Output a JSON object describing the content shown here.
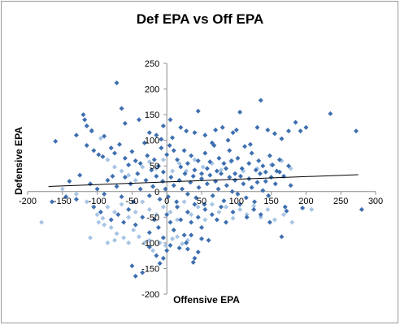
{
  "chart_data": {
    "type": "scatter",
    "title": "Def EPA vs Off EPA",
    "xlabel": "Offensive EPA",
    "ylabel": "Defensive EPA",
    "xlim": [
      -200,
      300
    ],
    "ylim": [
      -200,
      250
    ],
    "x_ticks": [
      -200,
      -150,
      -100,
      -50,
      0,
      50,
      100,
      150,
      200,
      250,
      300
    ],
    "y_ticks": [
      -200,
      -150,
      -100,
      -50,
      0,
      50,
      100,
      150,
      200,
      250
    ],
    "grid": false,
    "legend": "none",
    "trendline": {
      "type": "linear",
      "x": [
        -170,
        275
      ],
      "y": [
        10,
        33
      ],
      "color": "#000000"
    },
    "series": [
      {
        "color": "#3e6fb0",
        "points": [
          [
            -72,
            212
          ],
          [
            -65,
            162
          ],
          [
            -120,
            150
          ],
          [
            -118,
            140
          ],
          [
            -115,
            128
          ],
          [
            -108,
            118
          ],
          [
            -90,
            108
          ],
          [
            -60,
            133
          ],
          [
            -40,
            140
          ],
          [
            -25,
            115
          ],
          [
            -15,
            110
          ],
          [
            -8,
            102
          ],
          [
            5,
            140
          ],
          [
            -5,
            128
          ],
          [
            8,
            105
          ],
          [
            20,
            125
          ],
          [
            28,
            118
          ],
          [
            40,
            115
          ],
          [
            45,
            157
          ],
          [
            55,
            110
          ],
          [
            65,
            95
          ],
          [
            70,
            120
          ],
          [
            80,
            125
          ],
          [
            88,
            100
          ],
          [
            95,
            115
          ],
          [
            100,
            120
          ],
          [
            105,
            155
          ],
          [
            120,
            92
          ],
          [
            130,
            125
          ],
          [
            135,
            178
          ],
          [
            145,
            120
          ],
          [
            155,
            113
          ],
          [
            165,
            103
          ],
          [
            175,
            118
          ],
          [
            185,
            135
          ],
          [
            192,
            118
          ],
          [
            200,
            125
          ],
          [
            235,
            152
          ],
          [
            272,
            118
          ],
          [
            -160,
            98
          ],
          [
            -130,
            110
          ],
          [
            -115,
            90
          ],
          [
            -105,
            80
          ],
          [
            -98,
            72
          ],
          [
            -92,
            68
          ],
          [
            -80,
            85
          ],
          [
            -75,
            75
          ],
          [
            -68,
            92
          ],
          [
            -60,
            65
          ],
          [
            -55,
            52
          ],
          [
            -50,
            78
          ],
          [
            -45,
            60
          ],
          [
            -38,
            55
          ],
          [
            -32,
            95
          ],
          [
            -28,
            70
          ],
          [
            -22,
            42
          ],
          [
            -18,
            62
          ],
          [
            -12,
            50
          ],
          [
            -8,
            85
          ],
          [
            -5,
            38
          ],
          [
            0,
            72
          ],
          [
            4,
            90
          ],
          [
            10,
            80
          ],
          [
            15,
            62
          ],
          [
            20,
            48
          ],
          [
            25,
            80
          ],
          [
            30,
            55
          ],
          [
            35,
            70
          ],
          [
            40,
            42
          ],
          [
            45,
            60
          ],
          [
            50,
            35
          ],
          [
            55,
            75
          ],
          [
            58,
            45
          ],
          [
            62,
            58
          ],
          [
            68,
            90
          ],
          [
            72,
            40
          ],
          [
            75,
            65
          ],
          [
            82,
            55
          ],
          [
            85,
            45
          ],
          [
            90,
            80
          ],
          [
            93,
            60
          ],
          [
            98,
            35
          ],
          [
            102,
            65
          ],
          [
            108,
            45
          ],
          [
            112,
            88
          ],
          [
            118,
            55
          ],
          [
            122,
            75
          ],
          [
            128,
            42
          ],
          [
            132,
            60
          ],
          [
            138,
            50
          ],
          [
            142,
            38
          ],
          [
            148,
            70
          ],
          [
            152,
            52
          ],
          [
            158,
            40
          ],
          [
            162,
            62
          ],
          [
            168,
            30
          ],
          [
            175,
            50
          ],
          [
            -140,
            20
          ],
          [
            -125,
            32
          ],
          [
            -110,
            15
          ],
          [
            -100,
            5
          ],
          [
            -90,
            -5
          ],
          [
            -85,
            22
          ],
          [
            -78,
            30
          ],
          [
            -72,
            10
          ],
          [
            -65,
            -10
          ],
          [
            -60,
            28
          ],
          [
            -52,
            15
          ],
          [
            -48,
            -20
          ],
          [
            -42,
            35
          ],
          [
            -38,
            5
          ],
          [
            -30,
            22
          ],
          [
            -25,
            -8
          ],
          [
            -20,
            10
          ],
          [
            -15,
            30
          ],
          [
            -10,
            -15
          ],
          [
            -6,
            20
          ],
          [
            -2,
            5
          ],
          [
            2,
            -10
          ],
          [
            6,
            28
          ],
          [
            10,
            12
          ],
          [
            14,
            -20
          ],
          [
            18,
            22
          ],
          [
            22,
            5
          ],
          [
            26,
            35
          ],
          [
            30,
            -5
          ],
          [
            34,
            18
          ],
          [
            38,
            30
          ],
          [
            42,
            -12
          ],
          [
            46,
            8
          ],
          [
            50,
            25
          ],
          [
            54,
            -25
          ],
          [
            58,
            15
          ],
          [
            62,
            32
          ],
          [
            66,
            -8
          ],
          [
            70,
            20
          ],
          [
            74,
            5
          ],
          [
            78,
            35
          ],
          [
            82,
            -18
          ],
          [
            86,
            12
          ],
          [
            90,
            28
          ],
          [
            94,
            0
          ],
          [
            98,
            22
          ],
          [
            102,
            -5
          ],
          [
            106,
            30
          ],
          [
            110,
            15
          ],
          [
            114,
            -12
          ],
          [
            118,
            25
          ],
          [
            122,
            8
          ],
          [
            126,
            -20
          ],
          [
            130,
            18
          ],
          [
            134,
            35
          ],
          [
            138,
            2
          ],
          [
            142,
            20
          ],
          [
            146,
            -8
          ],
          [
            150,
            28
          ],
          [
            156,
            15
          ],
          [
            162,
            38
          ],
          [
            170,
            -30
          ],
          [
            178,
            12
          ],
          [
            195,
            -32
          ],
          [
            280,
            -35
          ],
          [
            -165,
            -20
          ],
          [
            -145,
            -10
          ],
          [
            -130,
            -15
          ],
          [
            -105,
            -30
          ],
          [
            -95,
            -40
          ],
          [
            -80,
            -55
          ],
          [
            -70,
            -45
          ],
          [
            -62,
            -60
          ],
          [
            -55,
            -35
          ],
          [
            -45,
            -65
          ],
          [
            -35,
            -50
          ],
          [
            -25,
            -80
          ],
          [
            -18,
            -55
          ],
          [
            -12,
            -70
          ],
          [
            -5,
            -90
          ],
          [
            0,
            -45
          ],
          [
            5,
            -60
          ],
          [
            10,
            -75
          ],
          [
            15,
            -30
          ],
          [
            20,
            -55
          ],
          [
            25,
            -85
          ],
          [
            30,
            -40
          ],
          [
            35,
            -60
          ],
          [
            40,
            -25
          ],
          [
            45,
            -50
          ],
          [
            50,
            -70
          ],
          [
            55,
            -35
          ],
          [
            60,
            -95
          ],
          [
            65,
            -45
          ],
          [
            72,
            -55
          ],
          [
            78,
            -30
          ],
          [
            85,
            -60
          ],
          [
            95,
            -40
          ],
          [
            105,
            -25
          ],
          [
            115,
            -50
          ],
          [
            125,
            -35
          ],
          [
            135,
            -45
          ],
          [
            148,
            -60
          ],
          [
            165,
            -88
          ],
          [
            172,
            -38
          ],
          [
            -25,
            -108
          ],
          [
            -15,
            -125
          ],
          [
            -5,
            -130
          ],
          [
            5,
            -105
          ],
          [
            18,
            -110
          ],
          [
            28,
            -100
          ],
          [
            35,
            -85
          ],
          [
            40,
            -130
          ],
          [
            45,
            -118
          ],
          [
            50,
            -92
          ],
          [
            -35,
            -158
          ],
          [
            -45,
            -165
          ],
          [
            -50,
            -145
          ],
          [
            38,
            -138
          ],
          [
            30,
            -112
          ],
          [
            -10,
            -140
          ],
          [
            0,
            -115
          ]
        ]
      },
      {
        "color": "#a7c4e4",
        "points": [
          [
            -108,
            120
          ],
          [
            -95,
            104
          ],
          [
            -85,
            62
          ],
          [
            -75,
            48
          ],
          [
            -65,
            40
          ],
          [
            -55,
            32
          ],
          [
            -45,
            22
          ],
          [
            -35,
            48
          ],
          [
            -25,
            58
          ],
          [
            -15,
            45
          ],
          [
            -5,
            62
          ],
          [
            8,
            40
          ],
          [
            18,
            55
          ],
          [
            28,
            40
          ],
          [
            40,
            62
          ],
          [
            52,
            48
          ],
          [
            65,
            55
          ],
          [
            78,
            42
          ],
          [
            92,
            58
          ],
          [
            110,
            40
          ],
          [
            130,
            45
          ],
          [
            150,
            52
          ],
          [
            165,
            60
          ],
          [
            178,
            45
          ],
          [
            -150,
            5
          ],
          [
            -130,
            -5
          ],
          [
            -115,
            -20
          ],
          [
            -100,
            -45
          ],
          [
            -92,
            -52
          ],
          [
            -85,
            -30
          ],
          [
            -75,
            -40
          ],
          [
            -65,
            -25
          ],
          [
            -55,
            -50
          ],
          [
            -45,
            -40
          ],
          [
            -35,
            -20
          ],
          [
            -25,
            -35
          ],
          [
            -15,
            -45
          ],
          [
            -5,
            -30
          ],
          [
            5,
            -40
          ],
          [
            15,
            -55
          ],
          [
            25,
            -20
          ],
          [
            35,
            -45
          ],
          [
            45,
            -30
          ],
          [
            55,
            -55
          ],
          [
            65,
            -25
          ],
          [
            75,
            -40
          ],
          [
            85,
            -30
          ],
          [
            95,
            -52
          ],
          [
            105,
            -35
          ],
          [
            115,
            -45
          ],
          [
            125,
            -28
          ],
          [
            135,
            -50
          ],
          [
            145,
            -35
          ],
          [
            155,
            -55
          ],
          [
            168,
            -45
          ],
          [
            180,
            -60
          ],
          [
            208,
            -35
          ],
          [
            -180,
            -60
          ],
          [
            -98,
            -60
          ],
          [
            -90,
            -65
          ],
          [
            -80,
            -70
          ],
          [
            -72,
            -82
          ],
          [
            -62,
            -90
          ],
          [
            -55,
            -100
          ],
          [
            -48,
            -75
          ],
          [
            -40,
            -88
          ],
          [
            -32,
            -100
          ],
          [
            -25,
            -95
          ],
          [
            -20,
            -115
          ],
          [
            -10,
            -100
          ],
          [
            -2,
            -105
          ],
          [
            8,
            -92
          ],
          [
            15,
            -88
          ],
          [
            22,
            -102
          ],
          [
            30,
            -95
          ],
          [
            -85,
            -100
          ],
          [
            -110,
            -90
          ],
          [
            -75,
            -95
          ]
        ]
      }
    ]
  }
}
